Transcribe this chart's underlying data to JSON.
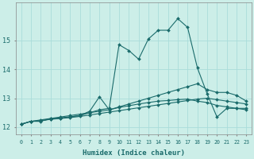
{
  "xlabel": "Humidex (Indice chaleur)",
  "bg_color": "#cceee8",
  "grid_color": "#aaddda",
  "line_color": "#1a6b6b",
  "xlim": [
    -0.5,
    23.5
  ],
  "ylim": [
    11.75,
    16.3
  ],
  "yticks": [
    12,
    13,
    14,
    15
  ],
  "xticks": [
    0,
    1,
    2,
    3,
    4,
    5,
    6,
    7,
    8,
    9,
    10,
    11,
    12,
    13,
    14,
    15,
    16,
    17,
    18,
    19,
    20,
    21,
    22,
    23
  ],
  "lines": [
    {
      "x": [
        0,
        1,
        2,
        3,
        4,
        5,
        6,
        7,
        8,
        9,
        10,
        11,
        12,
        13,
        14,
        15,
        16,
        17,
        18,
        19,
        20,
        21,
        22,
        23
      ],
      "y": [
        12.1,
        12.2,
        12.2,
        12.3,
        12.3,
        12.35,
        12.4,
        12.5,
        12.6,
        12.65,
        14.85,
        14.65,
        14.35,
        15.05,
        15.35,
        15.35,
        15.75,
        15.45,
        14.05,
        13.15,
        12.35,
        12.65,
        12.65,
        12.65
      ]
    },
    {
      "x": [
        0,
        1,
        2,
        3,
        4,
        5,
        6,
        7,
        8,
        9,
        10,
        11,
        12,
        13,
        14,
        15,
        16,
        17,
        18,
        19,
        20,
        21,
        22,
        23
      ],
      "y": [
        12.1,
        12.2,
        12.25,
        12.3,
        12.35,
        12.4,
        12.45,
        12.5,
        12.55,
        12.6,
        12.7,
        12.8,
        12.9,
        13.0,
        13.1,
        13.2,
        13.3,
        13.4,
        13.5,
        13.3,
        13.2,
        13.2,
        13.1,
        12.9
      ]
    },
    {
      "x": [
        0,
        1,
        2,
        3,
        4,
        5,
        6,
        7,
        8,
        9,
        10,
        11,
        12,
        13,
        14,
        15,
        16,
        17,
        18,
        19,
        20,
        21,
        22,
        23
      ],
      "y": [
        12.1,
        12.2,
        12.22,
        12.28,
        12.32,
        12.36,
        12.4,
        12.55,
        13.05,
        12.6,
        12.68,
        12.74,
        12.8,
        12.85,
        12.9,
        12.92,
        12.95,
        12.97,
        12.9,
        12.85,
        12.75,
        12.7,
        12.65,
        12.6
      ]
    },
    {
      "x": [
        0,
        1,
        2,
        3,
        4,
        5,
        6,
        7,
        8,
        9,
        10,
        11,
        12,
        13,
        14,
        15,
        16,
        17,
        18,
        19,
        20,
        21,
        22,
        23
      ],
      "y": [
        12.1,
        12.2,
        12.22,
        12.27,
        12.3,
        12.33,
        12.37,
        12.42,
        12.47,
        12.52,
        12.57,
        12.62,
        12.67,
        12.72,
        12.77,
        12.82,
        12.87,
        12.92,
        12.97,
        13.0,
        12.95,
        12.9,
        12.85,
        12.8
      ]
    }
  ]
}
